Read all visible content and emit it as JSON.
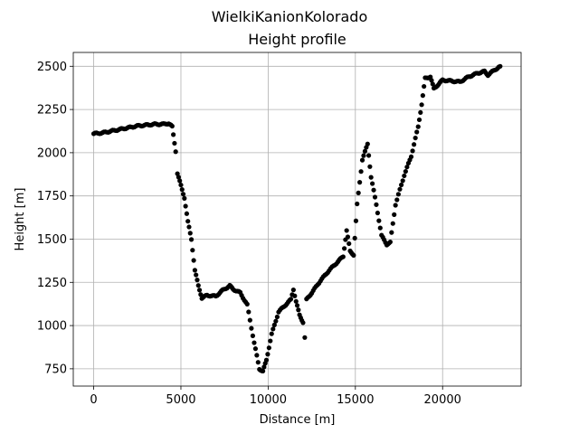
{
  "chart_data": {
    "type": "scatter",
    "suptitle": "WielkiKanionKolorado",
    "title": "Height profile",
    "xlabel": "Distance [m]",
    "ylabel": "Height [m]",
    "xlim": [
      -1170,
      24500
    ],
    "ylim": [
      650,
      2580
    ],
    "xticks": [
      0,
      5000,
      10000,
      15000,
      20000
    ],
    "xtick_labels": [
      "0",
      "5000",
      "10000",
      "15000",
      "20000"
    ],
    "yticks": [
      750,
      1000,
      1250,
      1500,
      1750,
      2000,
      2250,
      2500
    ],
    "ytick_labels": [
      "750",
      "1000",
      "1250",
      "1500",
      "1750",
      "2000",
      "2250",
      "2500"
    ],
    "grid": true,
    "marker_color": "#000000",
    "profile_keypoints": [
      [
        0,
        2110
      ],
      [
        500,
        2115
      ],
      [
        1000,
        2125
      ],
      [
        1500,
        2135
      ],
      [
        2000,
        2145
      ],
      [
        2500,
        2155
      ],
      [
        3000,
        2160
      ],
      [
        3500,
        2165
      ],
      [
        4000,
        2165
      ],
      [
        4300,
        2170
      ],
      [
        4500,
        2150
      ],
      [
        4700,
        2010
      ],
      [
        4800,
        1880
      ],
      [
        5000,
        1810
      ],
      [
        5200,
        1740
      ],
      [
        5400,
        1600
      ],
      [
        5600,
        1500
      ],
      [
        5800,
        1320
      ],
      [
        6000,
        1230
      ],
      [
        6200,
        1160
      ],
      [
        6500,
        1175
      ],
      [
        7000,
        1170
      ],
      [
        7400,
        1205
      ],
      [
        7800,
        1230
      ],
      [
        8000,
        1210
      ],
      [
        8400,
        1190
      ],
      [
        8800,
        1120
      ],
      [
        9200,
        900
      ],
      [
        9500,
        750
      ],
      [
        9700,
        735
      ],
      [
        9900,
        800
      ],
      [
        10200,
        950
      ],
      [
        10600,
        1080
      ],
      [
        11000,
        1120
      ],
      [
        11300,
        1150
      ],
      [
        11450,
        1210
      ],
      [
        11600,
        1140
      ],
      [
        11800,
        1060
      ],
      [
        12000,
        1020
      ],
      [
        12100,
        930
      ],
      [
        12200,
        1150
      ],
      [
        12500,
        1190
      ],
      [
        13000,
        1260
      ],
      [
        13500,
        1320
      ],
      [
        14000,
        1370
      ],
      [
        14300,
        1400
      ],
      [
        14500,
        1550
      ],
      [
        14700,
        1430
      ],
      [
        14900,
        1410
      ],
      [
        15100,
        1700
      ],
      [
        15400,
        1960
      ],
      [
        15700,
        2050
      ],
      [
        15900,
        1860
      ],
      [
        16200,
        1700
      ],
      [
        16500,
        1520
      ],
      [
        16800,
        1470
      ],
      [
        17000,
        1480
      ],
      [
        17300,
        1700
      ],
      [
        17800,
        1870
      ],
      [
        18200,
        1980
      ],
      [
        18600,
        2150
      ],
      [
        18800,
        2280
      ],
      [
        19000,
        2430
      ],
      [
        19300,
        2440
      ],
      [
        19500,
        2370
      ],
      [
        19700,
        2390
      ],
      [
        20000,
        2420
      ],
      [
        20500,
        2415
      ],
      [
        21000,
        2410
      ],
      [
        21500,
        2440
      ],
      [
        22000,
        2460
      ],
      [
        22400,
        2470
      ],
      [
        22600,
        2450
      ],
      [
        23000,
        2480
      ],
      [
        23300,
        2500
      ]
    ],
    "sample_step": 80
  }
}
